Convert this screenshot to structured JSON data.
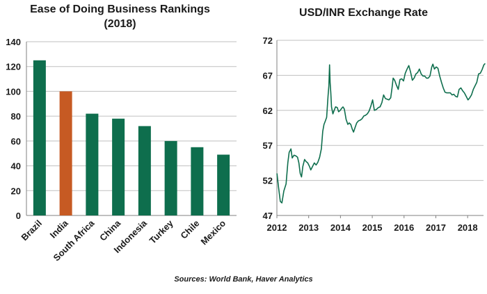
{
  "colors": {
    "green": "#0e6e4d",
    "orange": "#c65a23",
    "grid": "#bfbfbf",
    "axis": "#808080"
  },
  "chart_data": [
    {
      "type": "bar",
      "title_line1": "Ease of Doing Business Rankings",
      "title_line2": "(2018)",
      "categories": [
        "Brazil",
        "India",
        "South Africa",
        "China",
        "Indonesia",
        "Turkey",
        "Chile",
        "Mexico"
      ],
      "values": [
        125,
        100,
        82,
        78,
        72,
        60,
        55,
        49
      ],
      "highlight": "India",
      "ylim": [
        0,
        140
      ],
      "yticks": [
        0,
        20,
        40,
        60,
        80,
        100,
        120,
        140
      ],
      "grid": true
    },
    {
      "type": "line",
      "title": "USD/INR Exchange Rate",
      "xticks": [
        "2012",
        "2013",
        "2014",
        "2015",
        "2016",
        "2017",
        "2018"
      ],
      "yticks": [
        47,
        52,
        57,
        62,
        67,
        72
      ],
      "ylim": [
        47,
        72
      ],
      "xlim": [
        "2012-01",
        "2018-07"
      ],
      "grid": true,
      "series": [
        {
          "x": [
            "2012-01-02",
            "2012-01-20",
            "2012-02-10",
            "2012-02-28",
            "2012-03-20",
            "2012-04-15",
            "2012-05-05",
            "2012-05-20",
            "2012-06-10",
            "2012-06-25",
            "2012-07-15",
            "2012-08-05",
            "2012-08-25",
            "2012-09-10",
            "2012-09-25",
            "2012-10-10",
            "2012-10-25",
            "2012-11-15",
            "2012-12-01",
            "2012-12-20",
            "2013-01-10",
            "2013-01-25",
            "2013-02-15",
            "2013-03-05",
            "2013-03-25",
            "2013-04-15",
            "2013-05-05",
            "2013-05-25",
            "2013-06-10",
            "2013-06-25",
            "2013-07-10",
            "2013-07-25",
            "2013-08-10",
            "2013-08-20",
            "2013-08-28",
            "2013-09-04",
            "2013-09-12",
            "2013-09-20",
            "2013-10-05",
            "2013-10-20",
            "2013-11-05",
            "2013-11-25",
            "2013-12-10",
            "2013-12-28",
            "2014-01-15",
            "2014-01-30",
            "2014-02-15",
            "2014-03-05",
            "2014-03-25",
            "2014-04-10",
            "2014-04-28",
            "2014-05-15",
            "2014-05-30",
            "2014-06-15",
            "2014-07-05",
            "2014-07-25",
            "2014-08-15",
            "2014-09-05",
            "2014-09-25",
            "2014-10-15",
            "2014-11-05",
            "2014-11-25",
            "2014-12-15",
            "2015-01-05",
            "2015-01-25",
            "2015-02-15",
            "2015-03-10",
            "2015-03-30",
            "2015-04-20",
            "2015-05-10",
            "2015-05-30",
            "2015-06-20",
            "2015-07-10",
            "2015-07-30",
            "2015-08-15",
            "2015-08-28",
            "2015-09-15",
            "2015-10-05",
            "2015-10-25",
            "2015-11-15",
            "2015-12-05",
            "2015-12-25",
            "2016-01-15",
            "2016-02-05",
            "2016-02-25",
            "2016-03-15",
            "2016-04-05",
            "2016-04-25",
            "2016-05-15",
            "2016-06-05",
            "2016-06-25",
            "2016-07-15",
            "2016-08-05",
            "2016-08-25",
            "2016-09-15",
            "2016-10-05",
            "2016-10-25",
            "2016-11-15",
            "2016-11-28",
            "2016-12-15",
            "2017-01-05",
            "2017-01-25",
            "2017-02-15",
            "2017-03-05",
            "2017-03-25",
            "2017-04-15",
            "2017-05-05",
            "2017-05-25",
            "2017-06-15",
            "2017-07-05",
            "2017-07-25",
            "2017-08-15",
            "2017-09-05",
            "2017-09-25",
            "2017-10-15",
            "2017-11-05",
            "2017-11-25",
            "2017-12-15",
            "2018-01-05",
            "2018-01-25",
            "2018-02-15",
            "2018-03-05",
            "2018-03-25",
            "2018-04-15",
            "2018-05-05",
            "2018-05-25",
            "2018-06-15",
            "2018-07-05",
            "2018-07-20"
          ],
          "y": [
            53.0,
            51.0,
            49.0,
            48.8,
            50.5,
            51.5,
            54.5,
            56.0,
            56.5,
            55.2,
            55.6,
            55.5,
            55.3,
            54.5,
            53.0,
            52.5,
            54.0,
            55.0,
            54.7,
            54.5,
            54.0,
            53.5,
            54.0,
            54.5,
            54.2,
            54.6,
            55.3,
            56.5,
            59.0,
            60.0,
            60.5,
            61.0,
            64.0,
            65.5,
            68.5,
            66.0,
            64.5,
            62.5,
            61.5,
            62.0,
            62.5,
            62.4,
            61.8,
            62.0,
            62.3,
            62.5,
            62.2,
            60.7,
            60.0,
            60.2,
            60.0,
            59.3,
            58.9,
            59.5,
            60.2,
            60.5,
            60.6,
            60.8,
            61.2,
            61.3,
            61.5,
            61.9,
            62.6,
            63.5,
            62.0,
            62.1,
            62.4,
            62.5,
            63.1,
            64.2,
            63.7,
            63.6,
            63.5,
            63.8,
            65.2,
            66.6,
            66.3,
            65.6,
            65.0,
            66.4,
            66.5,
            66.2,
            67.3,
            67.9,
            68.4,
            67.5,
            66.3,
            66.6,
            67.2,
            67.4,
            67.9,
            67.2,
            66.9,
            66.9,
            66.6,
            66.6,
            66.9,
            68.2,
            68.6,
            67.9,
            68.2,
            68.0,
            66.9,
            66.0,
            65.2,
            64.6,
            64.5,
            64.5,
            64.5,
            64.2,
            64.3,
            64.0,
            63.9,
            65.0,
            65.2,
            64.8,
            64.5,
            64.0,
            63.5,
            63.8,
            64.2,
            65.0,
            65.5,
            66.0,
            67.2,
            67.3,
            67.8,
            68.5,
            68.7
          ]
        }
      ]
    }
  ],
  "source_note": "Sources: World Bank, Haver Analytics"
}
